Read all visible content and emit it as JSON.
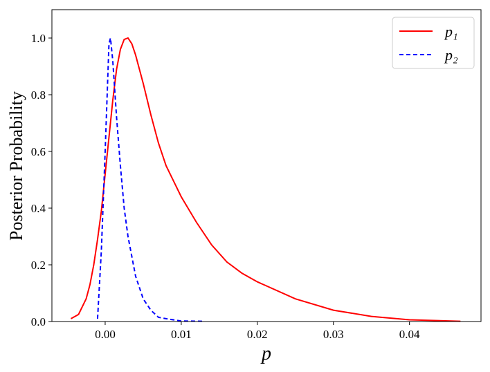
{
  "chart_data": {
    "type": "line",
    "xlabel": "p",
    "ylabel": "Posterior Probability",
    "xlim": [
      -0.007,
      0.0494
    ],
    "ylim": [
      0,
      1.1
    ],
    "xticks": [
      {
        "value": 0,
        "label": "0.00"
      },
      {
        "value": 0.01,
        "label": "0.01"
      },
      {
        "value": 0.02,
        "label": "0.02"
      },
      {
        "value": 0.03,
        "label": "0.03"
      },
      {
        "value": 0.04,
        "label": "0.04"
      }
    ],
    "yticks": [
      {
        "value": 0,
        "label": "0.0"
      },
      {
        "value": 0.2,
        "label": "0.2"
      },
      {
        "value": 0.4,
        "label": "0.4"
      },
      {
        "value": 0.6,
        "label": "0.6"
      },
      {
        "value": 0.8,
        "label": "0.8"
      },
      {
        "value": 1,
        "label": "1.0"
      }
    ],
    "grid": false,
    "legend": "upper right",
    "series": [
      {
        "name": "p₁",
        "color": "#ff0000",
        "dash": "solid",
        "x": [
          -0.0045,
          -0.0035,
          -0.0025,
          -0.002,
          -0.0015,
          -0.001,
          -0.0005,
          0,
          0.0005,
          0.001,
          0.0015,
          0.002,
          0.0025,
          0.003,
          0.0035,
          0.004,
          0.005,
          0.006,
          0.007,
          0.008,
          0.01,
          0.012,
          0.014,
          0.016,
          0.018,
          0.02,
          0.025,
          0.03,
          0.035,
          0.04,
          0.0467
        ],
        "values": [
          0.01,
          0.025,
          0.08,
          0.13,
          0.2,
          0.29,
          0.39,
          0.52,
          0.65,
          0.78,
          0.89,
          0.96,
          0.995,
          1.0,
          0.98,
          0.94,
          0.84,
          0.73,
          0.63,
          0.55,
          0.44,
          0.35,
          0.27,
          0.21,
          0.17,
          0.14,
          0.08,
          0.04,
          0.018,
          0.006,
          0.001
        ]
      },
      {
        "name": "p₂",
        "color": "#0000ff",
        "dash": "dashed",
        "x": [
          -0.001,
          -0.0005,
          0,
          0.0005,
          0.0007,
          0.001,
          0.0015,
          0.002,
          0.0025,
          0.003,
          0.004,
          0.005,
          0.006,
          0.007,
          0.008,
          0.01,
          0.0128
        ],
        "values": [
          0.01,
          0.25,
          0.6,
          0.98,
          1.0,
          0.92,
          0.72,
          0.55,
          0.4,
          0.3,
          0.16,
          0.08,
          0.04,
          0.015,
          0.01,
          0.002,
          0.001
        ]
      }
    ]
  }
}
